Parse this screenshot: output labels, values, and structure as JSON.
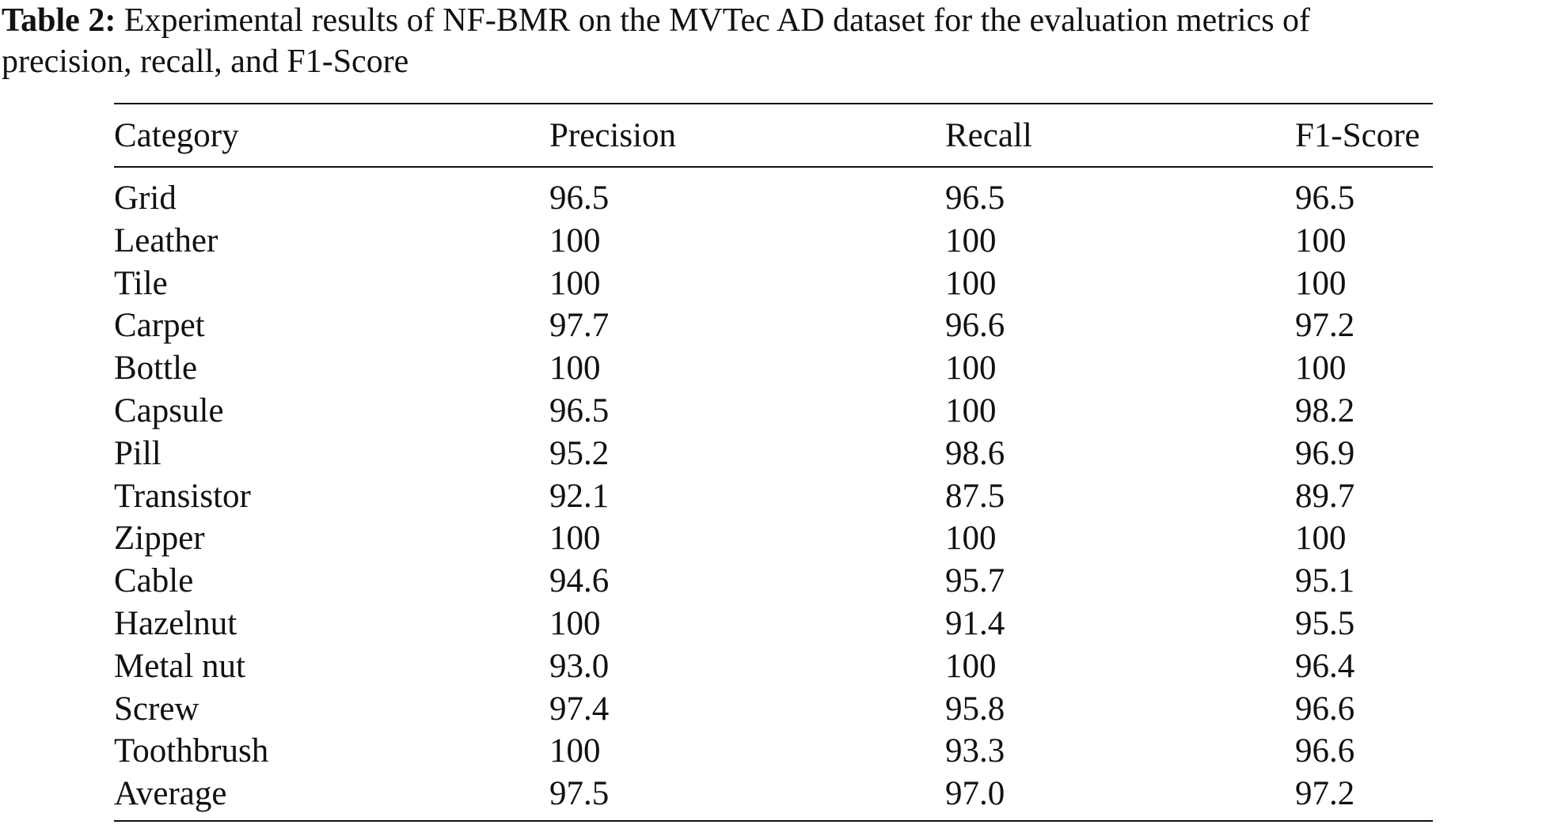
{
  "caption": {
    "label": "Table 2:",
    "line1_rest": " Experimental results of NF-BMR on the MVTec AD dataset for the evaluation metrics of",
    "line2": "precision, recall, and F1-Score"
  },
  "table": {
    "headers": [
      "Category",
      "Precision",
      "Recall",
      "F1-Score"
    ],
    "rows": [
      [
        "Grid",
        "96.5",
        "96.5",
        "96.5"
      ],
      [
        "Leather",
        "100",
        "100",
        "100"
      ],
      [
        "Tile",
        "100",
        "100",
        "100"
      ],
      [
        "Carpet",
        "97.7",
        "96.6",
        "97.2"
      ],
      [
        "Bottle",
        "100",
        "100",
        "100"
      ],
      [
        "Capsule",
        "96.5",
        "100",
        "98.2"
      ],
      [
        "Pill",
        "95.2",
        "98.6",
        "96.9"
      ],
      [
        "Transistor",
        "92.1",
        "87.5",
        "89.7"
      ],
      [
        "Zipper",
        "100",
        "100",
        "100"
      ],
      [
        "Cable",
        "94.6",
        "95.7",
        "95.1"
      ],
      [
        "Hazelnut",
        "100",
        "91.4",
        "95.5"
      ],
      [
        "Metal nut",
        "93.0",
        "100",
        "96.4"
      ],
      [
        "Screw",
        "97.4",
        "95.8",
        "96.6"
      ],
      [
        "Toothbrush",
        "100",
        "93.3",
        "96.6"
      ],
      [
        "Average",
        "97.5",
        "97.0",
        "97.2"
      ]
    ]
  }
}
